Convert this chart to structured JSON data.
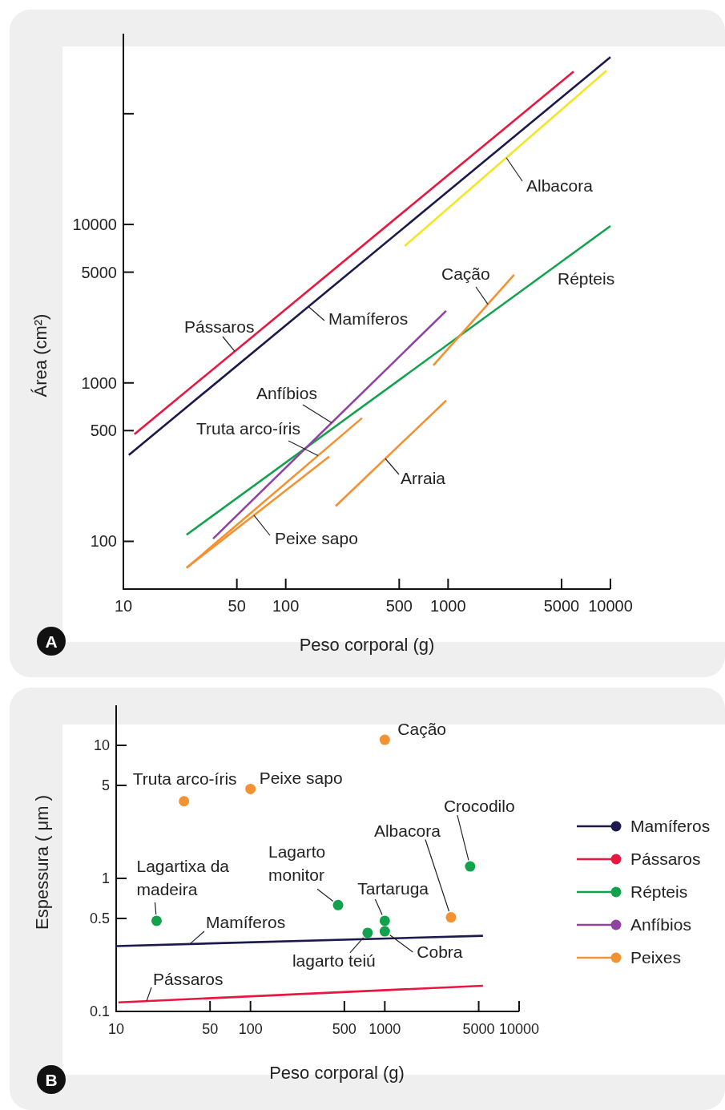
{
  "chart_data": [
    {
      "type": "line",
      "xlabel": "Peso corporal (g)",
      "ylabel": "Área (cm²)",
      "log": "xy",
      "xlim": [
        10,
        10000
      ],
      "ylim": [
        50,
        160000
      ],
      "xticks": [
        10,
        50,
        100,
        500,
        1000,
        5000,
        10000
      ],
      "yticks": [
        100,
        500,
        1000,
        5000,
        10000,
        {
          "value": 50000,
          "label": null
        }
      ],
      "grid": false,
      "legend": false,
      "annotations": [
        "A"
      ],
      "series": [
        {
          "name": "Pássaros",
          "color": "#e8173f",
          "x": [
            11.7,
            5930
          ],
          "values": [
            475,
            92300
          ]
        },
        {
          "name": "Mamíferos",
          "color": "#1b1a4a",
          "x": [
            10.8,
            10000
          ],
          "values": [
            351,
            113800
          ]
        },
        {
          "name": "Albacora",
          "color": "#f2e625",
          "x": [
            540,
            9440
          ],
          "values": [
            7310,
            93300
          ]
        },
        {
          "name": "Répteis",
          "color": "#12a24e",
          "x": [
            24.5,
            10000
          ],
          "values": [
            110,
            9770
          ]
        },
        {
          "name": "Anfíbios",
          "color": "#8e44a0",
          "x": [
            35.7,
            973
          ],
          "values": [
            104,
            2850
          ]
        },
        {
          "name": "Cação",
          "color": "#f39233",
          "x": [
            811,
            2550
          ],
          "values": [
            1290,
            4810
          ]
        },
        {
          "name": "Truta arco-íris",
          "color": "#f39233",
          "x": [
            24.5,
            295
          ],
          "values": [
            68,
            600
          ]
        },
        {
          "name": "Peixe sapo",
          "color": "#f39233",
          "x": [
            24.5,
            185
          ],
          "values": [
            68,
            343
          ]
        },
        {
          "name": "Arraia",
          "color": "#f39233",
          "x": [
            203,
            973
          ],
          "values": [
            167,
            774
          ]
        }
      ]
    },
    {
      "type": "line",
      "xlabel": "Peso corporal (g)",
      "ylabel": "Espessura ( μm )",
      "log": "xy",
      "xlim": [
        10,
        10000
      ],
      "ylim": [
        0.1,
        20
      ],
      "xticks": [
        10,
        50,
        100,
        500,
        1000,
        5000,
        10000
      ],
      "yticks": [
        0.1,
        0.5,
        1,
        5,
        10
      ],
      "grid": false,
      "legend": "right",
      "annotations": [
        "B",
        {
          "text": "Cação",
          "x": 1000,
          "y": 11
        },
        {
          "text": "Truta arco-íris",
          "x": 32,
          "y": 3.8
        },
        {
          "text": "Peixe sapo",
          "x": 100,
          "y": 4.7
        },
        {
          "text": "Lagartixa da madeira",
          "x": 20,
          "y": 0.48
        },
        {
          "text": "Lagarto monitor",
          "x": 449,
          "y": 0.63
        },
        {
          "text": "Tartaruga",
          "x": 1000,
          "y": 0.48
        },
        {
          "text": "lagarto teiú",
          "x": 745,
          "y": 0.39
        },
        {
          "text": "Cobra",
          "x": 1000,
          "y": 0.4
        },
        {
          "text": "Albacora",
          "x": 3110,
          "y": 0.51
        },
        {
          "text": "Crocodilo",
          "x": 4320,
          "y": 1.23
        }
      ],
      "series": [
        {
          "name": "Mamíferos",
          "color": "#1b1a4a",
          "x": [
            10,
            5380
          ],
          "values": [
            0.31,
            0.37
          ]
        },
        {
          "name": "Pássaros",
          "color": "#e8173f",
          "x": [
            10.4,
            5380
          ],
          "values": [
            0.117,
            0.156
          ]
        },
        {
          "name": "Répteis",
          "color": "#12a24e",
          "type": "scatter",
          "marker": "circle",
          "x": [
            20,
            449,
            1000,
            745,
            1000,
            4320
          ],
          "values": [
            0.48,
            0.63,
            0.48,
            0.39,
            0.4,
            1.23
          ]
        },
        {
          "name": "Anfíbios",
          "color": "#8e44a0",
          "type": "scatter",
          "marker": "circle"
        },
        {
          "name": "Peixes",
          "color": "#f39233",
          "type": "scatter",
          "marker": "circle",
          "x": [
            1000,
            32,
            100,
            3110
          ],
          "values": [
            11,
            3.8,
            4.7,
            0.51
          ]
        }
      ]
    }
  ]
}
